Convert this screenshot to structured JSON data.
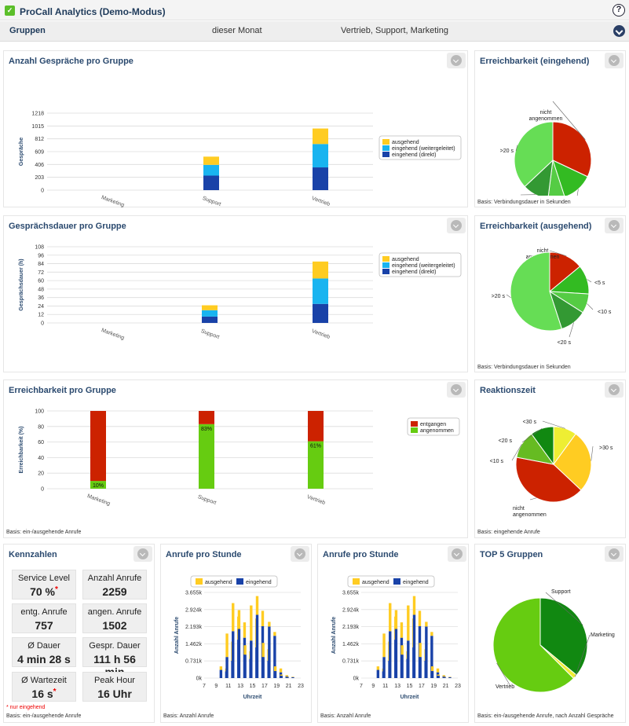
{
  "app": {
    "title": "ProCall Analytics (Demo-Modus)",
    "logo": "procall-logo-icon",
    "help": "?"
  },
  "filters": {
    "label": "Gruppen",
    "period": "dieser Monat",
    "groups": "Vertrieb, Support, Marketing"
  },
  "panels": {
    "anzahl": {
      "title": "Anzahl Gespräche pro Gruppe"
    },
    "dauer": {
      "title": "Gesprächsdauer pro Gruppe"
    },
    "erreichbarkeit_gruppe": {
      "title": "Erreichbarkeit pro Gruppe",
      "footer": "Basis: ein-/ausgehende Anrufe"
    },
    "erreich_ein": {
      "title": "Erreichbarkeit (eingehend)",
      "footer": "Basis: Verbindungsdauer in Sekunden"
    },
    "erreich_aus": {
      "title": "Erreichbarkeit (ausgehend)",
      "footer": "Basis: Verbindungsdauer in Sekunden"
    },
    "reaktion": {
      "title": "Reaktionszeit",
      "footer": "Basis: eingehende Anrufe"
    },
    "kennzahlen": {
      "title": "Kennzahlen",
      "footer": "Basis: ein-/ausgehende Anrufe",
      "note": "* nur eingehend"
    },
    "stunde1": {
      "title": "Anrufe pro Stunde",
      "footer": "Basis: Anzahl Anrufe"
    },
    "stunde2": {
      "title": "Anrufe pro Stunde",
      "footer": "Basis: Anzahl Anrufe"
    },
    "top5": {
      "title": "TOP 5 Gruppen",
      "footer": "Basis: ein-/ausgehende Anrufe, nach Anzahl Gespräche"
    }
  },
  "kennzahlen": {
    "tiles": [
      {
        "label": "Service Level",
        "value": "70 %",
        "star": "*"
      },
      {
        "label": "Anzahl Anrufe",
        "value": "2259",
        "star": ""
      },
      {
        "label": "entg. Anrufe",
        "value": "757",
        "star": ""
      },
      {
        "label": "angen. Anrufe",
        "value": "1502",
        "star": ""
      },
      {
        "label": "Ø Dauer",
        "value": "4 min 28 s",
        "star": ""
      },
      {
        "label": "Gespr. Dauer",
        "value": "111 h 56 min",
        "star": ""
      },
      {
        "label": "Ø Wartezeit",
        "value": "16 s",
        "star": "*"
      },
      {
        "label": "Peak Hour",
        "value": "16 Uhr",
        "star": ""
      }
    ]
  },
  "colors": {
    "ausgehend": "#ffcc22",
    "weitergeleitet": "#19b4f0",
    "direkt": "#1942a8",
    "entgangen": "#cc2200",
    "angenommen": "#66cc11",
    "title": "#2b4a6f"
  },
  "chart_data": [
    {
      "id": "anzahl",
      "type": "bar",
      "stacked": true,
      "title": "Anzahl Gespräche pro Gruppe",
      "categories": [
        "Marketing",
        "Support",
        "Vertrieb"
      ],
      "ylabel": "Gespräche",
      "yticks": [
        "0",
        "203",
        "406",
        "609",
        "812",
        "1015",
        "1218"
      ],
      "ylim": [
        0,
        1218
      ],
      "series": [
        {
          "name": "eingehend (direkt)",
          "values": [
            0,
            230,
            360
          ],
          "color": "#1942a8"
        },
        {
          "name": "eingehend (weitergeleitet)",
          "values": [
            0,
            170,
            370
          ],
          "color": "#19b4f0"
        },
        {
          "name": "ausgehend",
          "values": [
            0,
            130,
            245
          ],
          "color": "#ffcc22"
        }
      ],
      "legend": [
        "ausgehend",
        "eingehend (weitergeleitet)",
        "eingehend (direkt)"
      ]
    },
    {
      "id": "dauer",
      "type": "bar",
      "stacked": true,
      "title": "Gesprächsdauer pro Gruppe",
      "categories": [
        "Marketing",
        "Support",
        "Vertrieb"
      ],
      "ylabel": "Gesprächsdauer (h)",
      "yticks": [
        "0",
        "12",
        "24",
        "36",
        "48",
        "60",
        "72",
        "84",
        "96",
        "108"
      ],
      "ylim": [
        0,
        108
      ],
      "series": [
        {
          "name": "eingehend (direkt)",
          "values": [
            0,
            9,
            27
          ],
          "color": "#1942a8"
        },
        {
          "name": "eingehend (weitergeleitet)",
          "values": [
            0,
            9,
            36
          ],
          "color": "#19b4f0"
        },
        {
          "name": "ausgehend",
          "values": [
            0,
            7,
            24
          ],
          "color": "#ffcc22"
        }
      ],
      "legend": [
        "ausgehend",
        "eingehend (weitergeleitet)",
        "eingehend (direkt)"
      ]
    },
    {
      "id": "erreich_gruppe",
      "type": "bar",
      "stacked": true,
      "title": "Erreichbarkeit pro Gruppe",
      "categories": [
        "Marketing",
        "Support",
        "Vertrieb"
      ],
      "ylabel": "Erreichbarkeit (%)",
      "yticks": [
        "0",
        "20",
        "40",
        "60",
        "80",
        "100"
      ],
      "ylim": [
        0,
        100
      ],
      "series": [
        {
          "name": "angenommen",
          "values": [
            10,
            83,
            61
          ],
          "color": "#66cc11"
        },
        {
          "name": "entgangen",
          "values": [
            90,
            17,
            39
          ],
          "color": "#cc2200"
        }
      ],
      "data_labels": [
        "10%",
        "83%",
        "61%"
      ],
      "legend": [
        "entgangen",
        "angenommen"
      ]
    },
    {
      "id": "erreich_ein",
      "type": "pie",
      "title": "Erreichbarkeit (eingehend)",
      "slices": [
        {
          "label": "nicht angenommen",
          "value": 32,
          "color": "#cc2200"
        },
        {
          "label": "<5 s",
          "value": 13,
          "color": "#33bb22"
        },
        {
          "label": "<10 s",
          "value": 7,
          "color": "#55cc44"
        },
        {
          "label": "<20 s",
          "value": 11,
          "color": "#339933"
        },
        {
          "label": ">20 s",
          "value": 37,
          "color": "#66dd55"
        }
      ]
    },
    {
      "id": "erreich_aus",
      "type": "pie",
      "title": "Erreichbarkeit (ausgehend)",
      "slices": [
        {
          "label": "nicht angenommen",
          "value": 14,
          "color": "#cc2200"
        },
        {
          "label": "<5 s",
          "value": 12,
          "color": "#33bb22"
        },
        {
          "label": "<10 s",
          "value": 8,
          "color": "#55cc44"
        },
        {
          "label": "<20 s",
          "value": 11,
          "color": "#339933"
        },
        {
          "label": ">20 s",
          "value": 55,
          "color": "#66dd55"
        }
      ]
    },
    {
      "id": "reaktion",
      "type": "pie",
      "title": "Reaktionszeit",
      "slices": [
        {
          "label": "<30 s",
          "value": 10,
          "color": "#eeee33"
        },
        {
          "label": ">30 s",
          "value": 27,
          "color": "#ffcc22"
        },
        {
          "label": "nicht angenommen",
          "value": 41,
          "color": "#cc2200"
        },
        {
          "label": "<10 s",
          "value": 12,
          "color": "#66bb22"
        },
        {
          "label": "<20 s",
          "value": 10,
          "color": "#118811"
        }
      ]
    },
    {
      "id": "stunde1",
      "type": "bar",
      "stacked": true,
      "title": "Anrufe pro Stunde",
      "xlabel": "Uhrzeit",
      "ylabel": "Anzahl Anrufe",
      "xticks": [
        "7",
        "9",
        "11",
        "13",
        "15",
        "17",
        "19",
        "21",
        "23"
      ],
      "yticks": [
        "0k",
        "0.731k",
        "1.462k",
        "2.193k",
        "2.924k",
        "3.655k"
      ],
      "ylim": [
        0,
        3.655
      ],
      "x": [
        10,
        11,
        12,
        13,
        14,
        15,
        16,
        17,
        18,
        19,
        20,
        21
      ],
      "series": [
        {
          "name": "eingehend",
          "values": [
            0.35,
            0.9,
            2.0,
            2.1,
            1.0,
            1.6,
            2.7,
            0.9,
            2.2,
            0.3,
            0.1,
            0.05
          ],
          "color": "#1942a8"
        },
        {
          "name": "ausgehend",
          "values": [
            0.15,
            1.0,
            1.2,
            0.8,
            0.4,
            1.5,
            0.8,
            0.6,
            0.2,
            0.2,
            0.05,
            0.02
          ],
          "color": "#ffcc22"
        }
      ],
      "legend": [
        "ausgehend",
        "eingehend"
      ]
    },
    {
      "id": "stunde2",
      "type": "bar",
      "stacked": true,
      "title": "Anrufe pro Stunde",
      "xlabel": "Uhrzeit",
      "ylabel": "Anzahl Anrufe",
      "xticks": [
        "7",
        "9",
        "11",
        "13",
        "15",
        "17",
        "19",
        "21",
        "23"
      ],
      "yticks": [
        "0k",
        "0.731k",
        "1.462k",
        "2.193k",
        "2.924k",
        "3.655k"
      ],
      "ylim": [
        0,
        3.655
      ],
      "x": [
        10,
        11,
        12,
        13,
        14,
        15,
        16,
        17,
        18,
        19,
        20,
        21
      ],
      "series": [
        {
          "name": "eingehend",
          "values": [
            0.35,
            0.9,
            2.0,
            2.1,
            1.0,
            1.6,
            2.7,
            0.9,
            2.2,
            0.3,
            0.1,
            0.05
          ],
          "color": "#1942a8"
        },
        {
          "name": "ausgehend",
          "values": [
            0.15,
            1.0,
            1.2,
            0.8,
            0.4,
            1.5,
            0.8,
            0.6,
            0.2,
            0.2,
            0.05,
            0.02
          ],
          "color": "#ffcc22"
        }
      ],
      "legend": [
        "ausgehend",
        "eingehend"
      ]
    },
    {
      "id": "top5",
      "type": "pie",
      "title": "TOP 5 Gruppen",
      "slices": [
        {
          "label": "Support",
          "value": 36,
          "color": "#118811"
        },
        {
          "label": "Marketing",
          "value": 1.5,
          "color": "#eeee33"
        },
        {
          "label": "Vertrieb",
          "value": 62.5,
          "color": "#66cc11"
        }
      ]
    }
  ]
}
